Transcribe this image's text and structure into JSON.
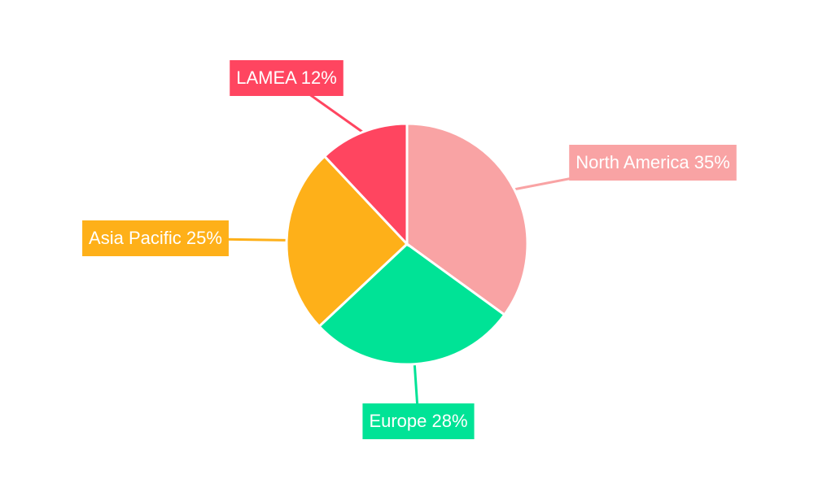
{
  "chart_data": {
    "type": "pie",
    "categories": [
      "North America",
      "Europe",
      "Asia Pacific",
      "LAMEA"
    ],
    "values": [
      35,
      28,
      25,
      12
    ],
    "value_labels": [
      "35%",
      "28%",
      "25%",
      "12%"
    ],
    "colors": [
      "#f9a3a4",
      "#00e396",
      "#feb019",
      "#ff4560"
    ]
  }
}
